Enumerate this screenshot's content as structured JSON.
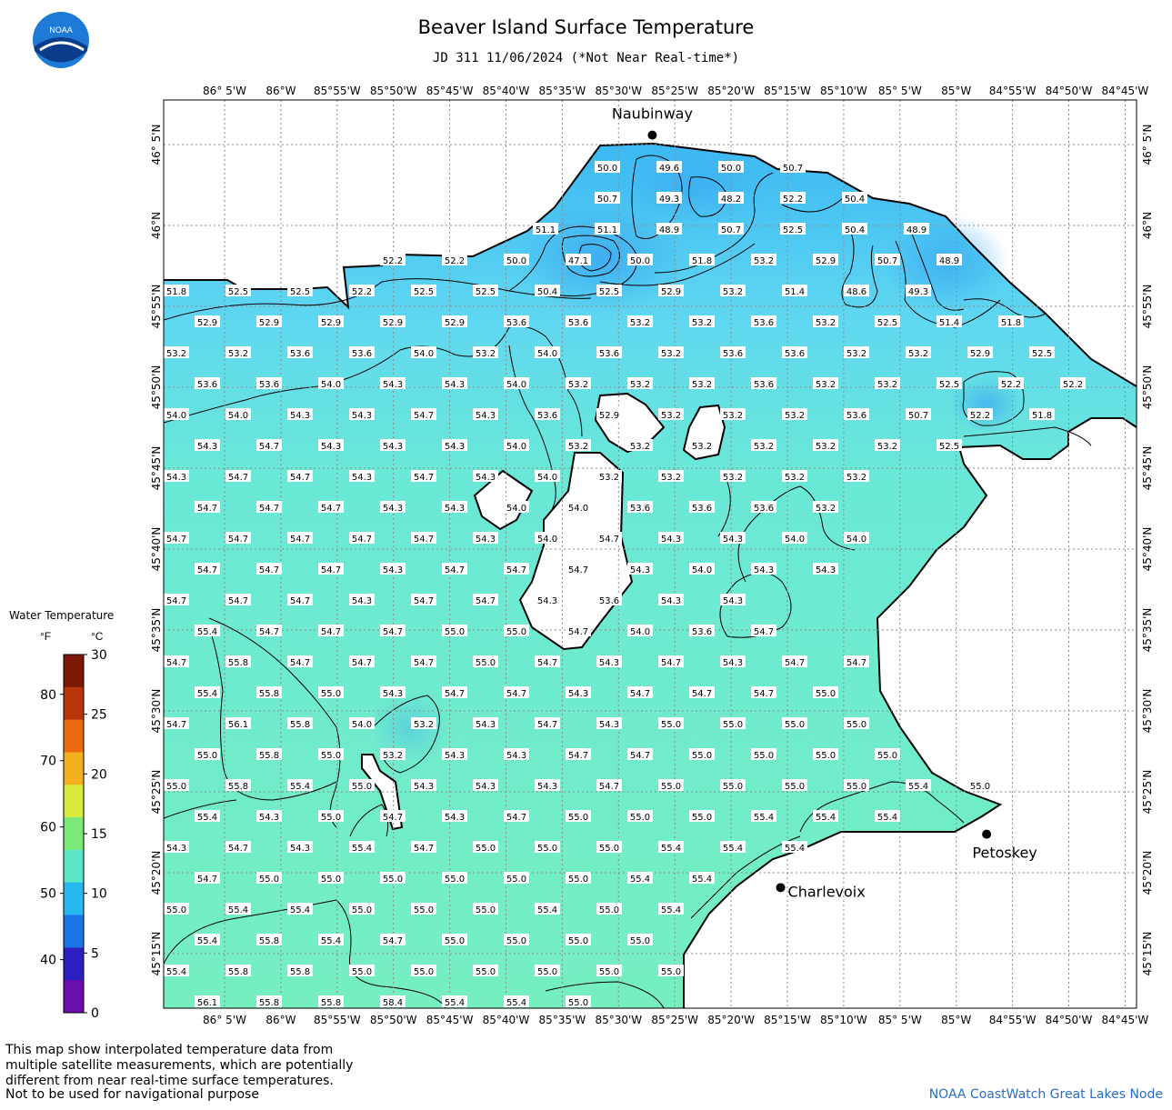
{
  "header": {
    "title": "Beaver Island Surface Temperature",
    "subtitle": "JD 311 11/06/2024 (*Not Near Real-time*)",
    "logo_text": "NOAA"
  },
  "axes": {
    "lon_labels": [
      "86° 5'W",
      "86°W",
      "85°55'W",
      "85°50'W",
      "85°45'W",
      "85°40'W",
      "85°35'W",
      "85°30'W",
      "85°25'W",
      "85°20'W",
      "85°15'W",
      "85°10'W",
      "85° 5'W",
      "85°W",
      "84°55'W",
      "84°50'W",
      "84°45'W"
    ],
    "lat_labels": [
      "46° 5'N",
      "46°N",
      "45°55'N",
      "45°50'N",
      "45°45'N",
      "45°40'N",
      "45°35'N",
      "45°30'N",
      "45°25'N",
      "45°20'N",
      "45°15'N"
    ]
  },
  "places": [
    {
      "name": "Naubinway",
      "lon": -85.45,
      "lat": 46.093
    },
    {
      "name": "Petoskey",
      "lon": -84.955,
      "lat": 45.373
    },
    {
      "name": "Charlevoix",
      "lon": -85.26,
      "lat": 45.318
    }
  ],
  "legend": {
    "title": "Water Temperature",
    "unit_f": "°F",
    "unit_c": "°C",
    "f_ticks": [
      "40",
      "50",
      "60",
      "70",
      "80"
    ],
    "c_ticks": [
      "0",
      "5",
      "10",
      "15",
      "20",
      "25",
      "30"
    ],
    "colors": [
      "#6a0dad",
      "#2c1fbf",
      "#1a74e6",
      "#27b8f0",
      "#5ce6c8",
      "#7ae97a",
      "#d8ea3c",
      "#f3b21d",
      "#ee6a10",
      "#b8340a",
      "#7a1a06"
    ]
  },
  "temperature_rows": [
    [
      "50.0",
      "49.6",
      "50.0",
      "50.7"
    ],
    [
      "50.7",
      "49.3",
      "48.2",
      "52.2",
      "50.4"
    ],
    [
      "51.1",
      "51.1",
      "48.9",
      "50.7",
      "52.5",
      "50.4",
      "48.9"
    ],
    [
      "52.2",
      "52.2",
      "50.0",
      "47.1",
      "50.0",
      "51.8",
      "53.2",
      "52.9",
      "50.7",
      "48.9"
    ],
    [
      "51.8",
      "52.5",
      "52.5",
      "52.2",
      "52.5",
      "52.5",
      "50.4",
      "52.5",
      "52.9",
      "53.2",
      "51.4",
      "48.6",
      "49.3"
    ],
    [
      "52.9",
      "52.9",
      "52.9",
      "52.9",
      "52.9",
      "53.6",
      "53.6",
      "53.2",
      "53.2",
      "53.6",
      "53.2",
      "52.5",
      "51.4",
      "51.8"
    ],
    [
      "53.2",
      "53.2",
      "53.6",
      "53.6",
      "54.0",
      "53.2",
      "54.0",
      "53.6",
      "53.2",
      "53.6",
      "53.6",
      "53.2",
      "53.2",
      "52.9",
      "52.5"
    ],
    [
      "53.6",
      "53.6",
      "54.0",
      "54.3",
      "54.3",
      "54.0",
      "53.2",
      "53.2",
      "53.2",
      "53.6",
      "53.2",
      "53.2",
      "52.5",
      "52.2",
      "52.2"
    ],
    [
      "54.0",
      "54.0",
      "54.3",
      "54.3",
      "54.7",
      "54.3",
      "53.6",
      "52.9",
      "53.2",
      "53.2",
      "53.2",
      "53.6",
      "50.7",
      "52.2",
      "51.8"
    ],
    [
      "54.3",
      "54.7",
      "54.3",
      "54.3",
      "54.3",
      "54.0",
      "53.2",
      "53.2",
      "53.2",
      "53.2",
      "53.2",
      "53.2",
      "52.5"
    ],
    [
      "54.3",
      "54.7",
      "54.7",
      "54.3",
      "54.7",
      "54.3",
      "54.0",
      "53.2",
      "53.2",
      "53.2",
      "53.2",
      "53.2"
    ],
    [
      "54.7",
      "54.7",
      "54.7",
      "54.3",
      "54.3",
      "54.0",
      "54.0",
      "53.6",
      "53.6",
      "53.6",
      "53.2"
    ],
    [
      "54.7",
      "54.7",
      "54.7",
      "54.7",
      "54.7",
      "54.3",
      "54.0",
      "54.7",
      "54.3",
      "54.3",
      "54.0",
      "54.0"
    ],
    [
      "54.7",
      "54.7",
      "54.7",
      "54.3",
      "54.7",
      "54.7",
      "54.7",
      "54.3",
      "54.0",
      "54.3",
      "54.3"
    ],
    [
      "54.7",
      "54.7",
      "54.7",
      "54.3",
      "54.7",
      "54.7",
      "54.3",
      "53.6",
      "54.3",
      "54.3"
    ],
    [
      "55.4",
      "54.7",
      "54.7",
      "54.7",
      "55.0",
      "55.0",
      "54.7",
      "54.0",
      "53.6",
      "54.7"
    ],
    [
      "54.7",
      "55.8",
      "54.7",
      "54.7",
      "54.7",
      "55.0",
      "54.7",
      "54.3",
      "54.7",
      "54.3",
      "54.7",
      "54.7"
    ],
    [
      "55.4",
      "55.8",
      "55.0",
      "54.3",
      "54.7",
      "54.7",
      "54.3",
      "54.7",
      "54.7",
      "54.7",
      "55.0"
    ],
    [
      "54.7",
      "56.1",
      "55.8",
      "54.0",
      "53.2",
      "54.3",
      "54.7",
      "54.3",
      "55.0",
      "55.0",
      "55.0",
      "55.0"
    ],
    [
      "55.0",
      "55.8",
      "55.0",
      "53.2",
      "54.3",
      "54.3",
      "54.7",
      "54.7",
      "55.0",
      "55.0",
      "55.0",
      "55.0"
    ],
    [
      "55.0",
      "55.8",
      "55.4",
      "55.0",
      "54.3",
      "54.3",
      "54.3",
      "54.7",
      "55.0",
      "55.0",
      "55.0",
      "55.0",
      "55.4",
      "55.0"
    ],
    [
      "55.4",
      "54.3",
      "55.0",
      "54.7",
      "54.3",
      "54.7",
      "55.0",
      "55.0",
      "55.0",
      "55.4",
      "55.4",
      "55.4"
    ],
    [
      "54.3",
      "54.7",
      "54.3",
      "55.4",
      "54.7",
      "55.0",
      "55.0",
      "55.0",
      "55.4",
      "55.4",
      "55.4"
    ],
    [
      "54.7",
      "55.0",
      "55.0",
      "55.0",
      "55.0",
      "55.0",
      "55.0",
      "55.4",
      "55.4"
    ],
    [
      "55.0",
      "55.4",
      "55.4",
      "55.0",
      "55.0",
      "55.0",
      "55.4",
      "55.0",
      "55.4"
    ],
    [
      "55.4",
      "55.8",
      "55.4",
      "54.7",
      "55.0",
      "55.0",
      "55.0",
      "55.0"
    ],
    [
      "55.4",
      "55.8",
      "55.8",
      "55.0",
      "55.0",
      "55.0",
      "55.0",
      "55.0",
      "55.0"
    ],
    [
      "56.1",
      "55.8",
      "55.8",
      "58.4",
      "55.4",
      "55.4",
      "55.0"
    ]
  ],
  "footer": {
    "note_lines": [
      "This map show interpolated temperature data from",
      "multiple satellite measurements, which are potentially",
      "different from near real-time surface temperatures."
    ],
    "nav_warning": "Not to be used for navigational purpose",
    "credit": "NOAA CoastWatch Great Lakes Node"
  }
}
